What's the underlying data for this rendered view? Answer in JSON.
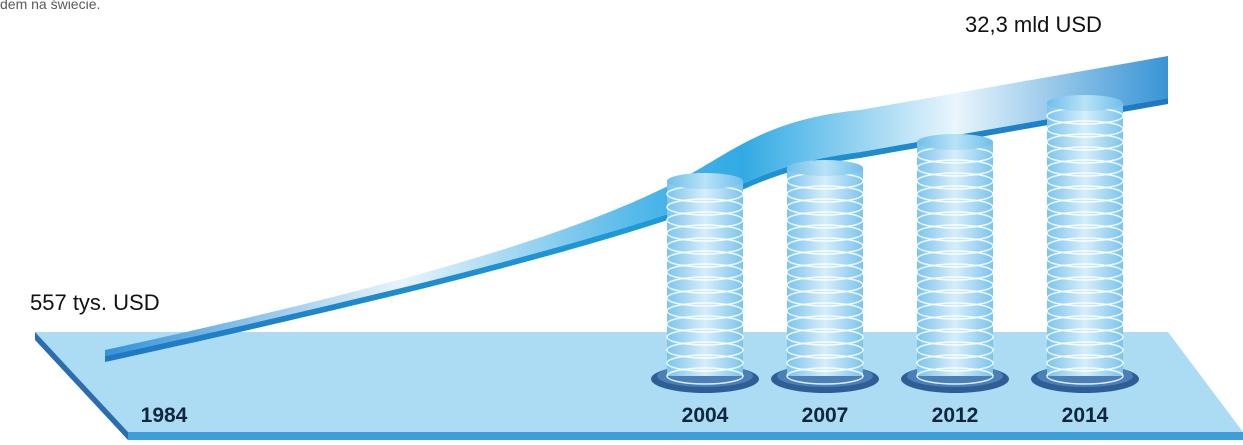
{
  "caption": "dem na świecie.",
  "chart_data": {
    "type": "area",
    "categories": [
      "1984",
      "2004",
      "2007",
      "2012",
      "2014"
    ],
    "start_value_label": "557 tys. USD",
    "end_value_label": "32,3 mld USD",
    "stacks": [
      {
        "year": "2004",
        "coins": 15
      },
      {
        "year": "2007",
        "coins": 16
      },
      {
        "year": "2012",
        "coins": 18
      },
      {
        "year": "2014",
        "coins": 21
      }
    ],
    "colors": {
      "platform": "#a9dcf3",
      "platform_edge": "#2b6fb0",
      "ribbon": "#2aa0db",
      "coin": "#8fd0f2",
      "coin_rim": "#5db3e6",
      "base_disc": "#2f5e97"
    }
  }
}
